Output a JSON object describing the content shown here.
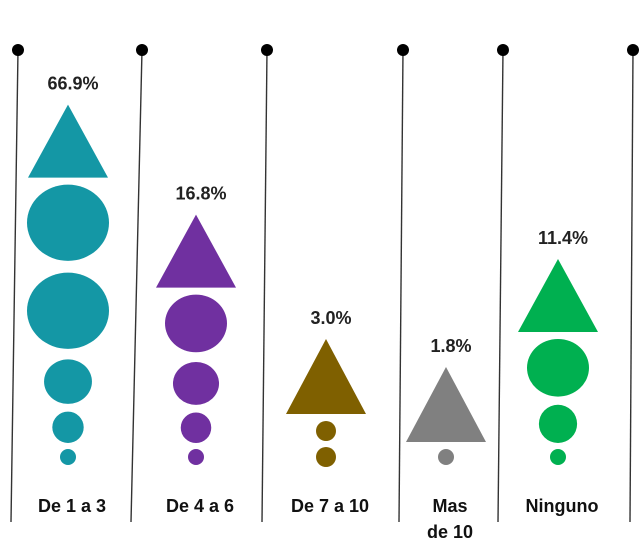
{
  "chart_data": {
    "type": "bar",
    "categories": [
      {
        "label": "De 1 a 3",
        "label_lines": [
          "De 1 a 3"
        ],
        "value": 66.9,
        "value_label": "66.9%",
        "color": "#1497a5"
      },
      {
        "label": "De 4 a 6",
        "label_lines": [
          "De 4 a 6"
        ],
        "value": 16.8,
        "value_label": "16.8%",
        "color": "#7030a0"
      },
      {
        "label": "De 7 a 10",
        "label_lines": [
          "De 7 a 10"
        ],
        "value": 3.0,
        "value_label": "3.0%",
        "color": "#7f6000"
      },
      {
        "label": "Mas de 10",
        "label_lines": [
          "Mas",
          "de 10"
        ],
        "value": 1.8,
        "value_label": "1.8%",
        "color": "#808080"
      },
      {
        "label": "Ninguno",
        "label_lines": [
          "Ninguno"
        ],
        "value": 11.4,
        "value_label": "11.4%",
        "color": "#00b050"
      }
    ],
    "unit": "%",
    "marker_style": "triangle-and-circles",
    "separator_color": "#333333"
  }
}
